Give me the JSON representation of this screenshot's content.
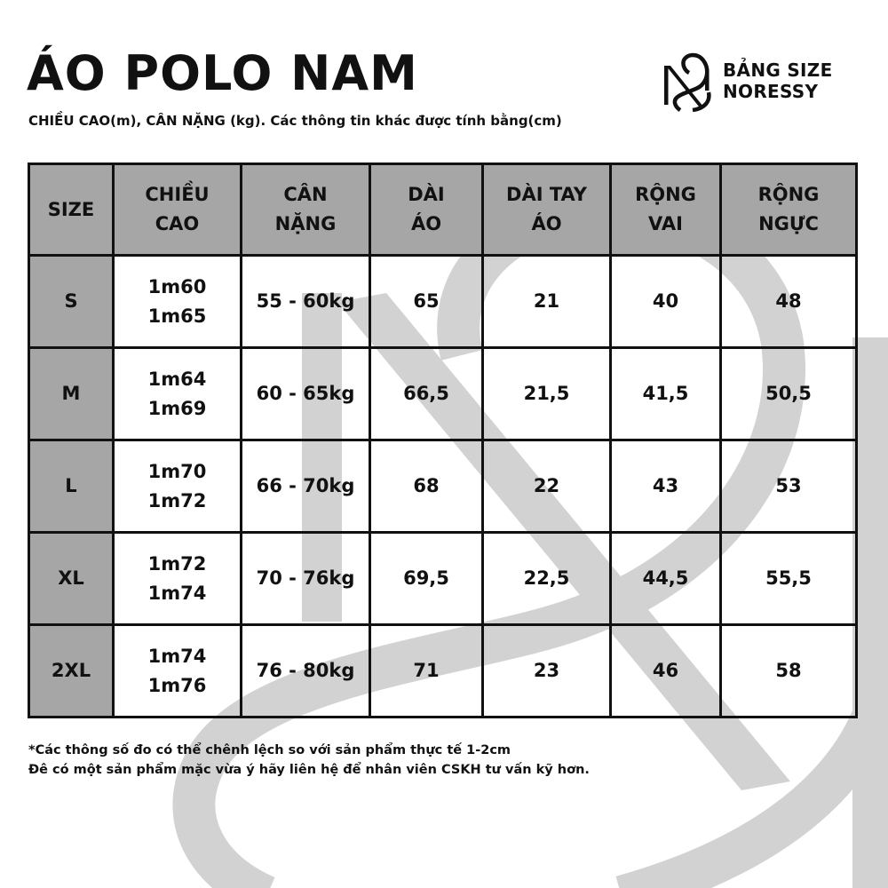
{
  "header": {
    "title": "ÁO POLO NAM",
    "subtitle": "CHIỀU CAO(m), CÂN NẶNG (kg). Các thông tin khác được tính bằng(cm)",
    "brand_line1": "BẢNG SIZE",
    "brand_line2": "NORESSY",
    "brand_logo_icon": "noressy-ns-monogram-icon"
  },
  "table": {
    "columns": [
      {
        "line1": "SIZE",
        "line2": ""
      },
      {
        "line1": "CHIỀU",
        "line2": "CAO"
      },
      {
        "line1": "CÂN",
        "line2": "NẶNG"
      },
      {
        "line1": "DÀI",
        "line2": "ÁO"
      },
      {
        "line1": "DÀI TAY",
        "line2": "ÁO"
      },
      {
        "line1": "RỘNG",
        "line2": "VAI"
      },
      {
        "line1": "RỘNG",
        "line2": "NGỰC"
      }
    ],
    "rows": [
      {
        "size": "S",
        "height_min": "1m60",
        "height_max": "1m65",
        "weight": "55 - 60kg",
        "length": "65",
        "sleeve": "21",
        "shoulder": "40",
        "chest": "48"
      },
      {
        "size": "M",
        "height_min": "1m64",
        "height_max": "1m69",
        "weight": "60 - 65kg",
        "length": "66,5",
        "sleeve": "21,5",
        "shoulder": "41,5",
        "chest": "50,5"
      },
      {
        "size": "L",
        "height_min": "1m70",
        "height_max": "1m72",
        "weight": "66 - 70kg",
        "length": "68",
        "sleeve": "22",
        "shoulder": "43",
        "chest": "53"
      },
      {
        "size": "XL",
        "height_min": "1m72",
        "height_max": "1m74",
        "weight": "70 - 76kg",
        "length": "69,5",
        "sleeve": "22,5",
        "shoulder": "44,5",
        "chest": "55,5"
      },
      {
        "size": "2XL",
        "height_min": "1m74",
        "height_max": "1m76",
        "weight": "76 - 80kg",
        "length": "71",
        "sleeve": "23",
        "shoulder": "46",
        "chest": "58"
      }
    ]
  },
  "notes": {
    "line1": "*Các thông số đo có thể chênh lệch so với sản phẩm thực tế 1-2cm",
    "line2": "Đê có một sản phẩm mặc vừa ý hãy liên hệ để nhân viên CSKH tư vấn kỹ hơn."
  },
  "colors": {
    "header_fill": "#a6a6a6",
    "border": "#111111",
    "watermark": "#d4d4d4",
    "text": "#111111"
  }
}
